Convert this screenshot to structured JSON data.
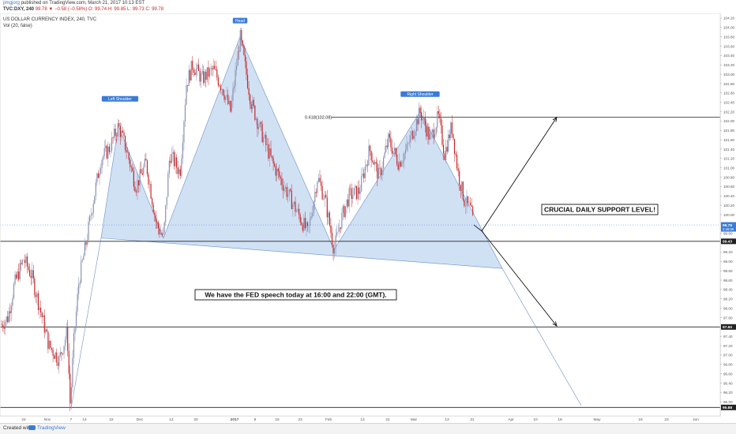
{
  "header": {
    "author": "jimgjorg",
    "published": "published on TradingView.com, March 21, 2017 10:13 EST",
    "ticker": "TVC:DXY, 240",
    "change": "99.78  ▼ −0.58 (−0.58%)",
    "ohlc": "O: 99.74  H: 99.85  L: 99.73  C: 99.78",
    "title": "US DOLLAR CURRENCY INDEX, 240, TVC",
    "volume": "Vol (20, false)"
  },
  "footer": {
    "created": "Created with",
    "brand": "TradingView"
  },
  "chart_data": {
    "type": "candlestick",
    "title": "US DOLLAR CURRENCY INDEX, 240, TVC",
    "ylim": [
      95.7,
      104.3
    ],
    "y_ticks": [
      96.0,
      96.2,
      96.4,
      96.6,
      96.8,
      97.0,
      97.2,
      97.4,
      97.6,
      97.8,
      98.0,
      98.2,
      98.4,
      98.6,
      98.8,
      99.0,
      99.2,
      99.4,
      99.6,
      99.8,
      100.0,
      100.2,
      100.4,
      100.6,
      100.8,
      101.0,
      101.2,
      101.4,
      101.6,
      101.8,
      102.0,
      102.2,
      102.4,
      102.6,
      102.8,
      103.0,
      103.2,
      103.4,
      103.6,
      103.8,
      104.0,
      104.2
    ],
    "x_tick_labels": [
      "24",
      "Nov",
      "7",
      "14",
      "22",
      "Dec",
      "12",
      "20",
      "2017",
      "9",
      "16",
      "23",
      "Feb",
      "13",
      "21",
      "Mar",
      "13",
      "21",
      "Apr",
      "10",
      "18",
      "May",
      "15",
      "23",
      "Jun"
    ],
    "price_markers": [
      {
        "value": 99.78,
        "label": "99.78",
        "sublabel": "2:46:09",
        "color": "#3a7bd5"
      },
      {
        "value": 99.43,
        "label": "99.43",
        "color": "#222222"
      },
      {
        "value": 97.6,
        "label": "97.60",
        "color": "#222222"
      },
      {
        "value": 95.88,
        "label": "95.88",
        "color": "#222222"
      }
    ],
    "horizontal_levels": [
      102.08,
      99.43,
      97.6,
      95.88
    ],
    "fib_label": "0.618(102.08)",
    "pattern_labels": {
      "left": "Left Shoulder",
      "head": "Head",
      "right": "Right Shoulder"
    },
    "key_prices": {
      "start": 97.7,
      "low": 95.9,
      "left_shoulder": 101.9,
      "left_trough": 99.5,
      "head": 103.8,
      "right_trough": 99.25,
      "right_shoulder": 102.2,
      "last": 99.78
    },
    "annotations": [
      "CRUCIAL DAILY SUPPORT LEVEL!",
      "We have the FED speech today at 16:00 and 22:00 (GMT)."
    ],
    "colors": {
      "up": "#8a8fb0",
      "down": "#c62828",
      "pattern_fill": "#c5d9f1",
      "pattern_stroke": "#6b8fc7",
      "accent": "#3a7bd5"
    }
  }
}
